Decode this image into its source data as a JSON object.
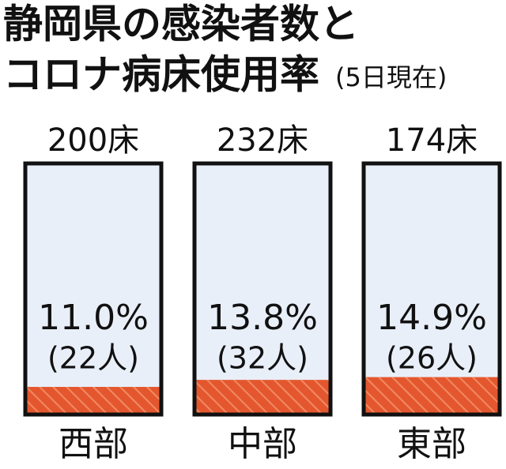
{
  "chart_data": {
    "type": "bar",
    "title": "静岡県の感染者数と",
    "subtitle": "コロナ病床使用率",
    "note": "(5日現在)",
    "categories": [
      "西部",
      "中部",
      "東部"
    ],
    "values": [
      11.0,
      13.8,
      14.9
    ],
    "value_labels": [
      "11.0%",
      "13.8%",
      "14.9%"
    ],
    "capacity": {
      "values": [
        200,
        232,
        174
      ],
      "value_labels": [
        "200床",
        "232床",
        "174床"
      ]
    },
    "patients": {
      "values": [
        22,
        32,
        26
      ],
      "value_labels": [
        "(22人)",
        "(32人)",
        "(26人)"
      ]
    },
    "color": "#e4572e",
    "ylim": [
      0,
      100
    ]
  }
}
